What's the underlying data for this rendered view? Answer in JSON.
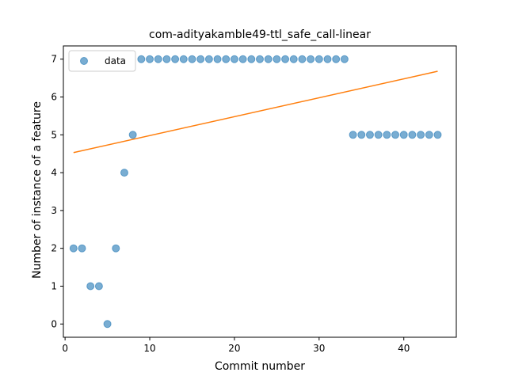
{
  "chart_data": {
    "type": "scatter",
    "title": "com-adityakamble49-ttl_safe_call-linear",
    "xlabel": "Commit number",
    "ylabel": "Number of instance of a feature",
    "xlim": [
      -0.2,
      46.2
    ],
    "ylim": [
      -0.35,
      7.35
    ],
    "xticks": [
      0,
      10,
      20,
      30,
      40
    ],
    "yticks": [
      0,
      1,
      2,
      3,
      4,
      5,
      6,
      7
    ],
    "grid": false,
    "legend_position": "top-left",
    "series": [
      {
        "name": "data",
        "type": "scatter",
        "color": "#1f77b4",
        "x": [
          1,
          2,
          3,
          4,
          5,
          6,
          7,
          8,
          9,
          10,
          11,
          12,
          13,
          14,
          15,
          16,
          17,
          18,
          19,
          20,
          21,
          22,
          23,
          24,
          25,
          26,
          27,
          28,
          29,
          30,
          31,
          32,
          33,
          34,
          35,
          36,
          37,
          38,
          39,
          40,
          41,
          42,
          43,
          44
        ],
        "y": [
          2,
          2,
          1,
          1,
          0,
          2,
          4,
          5,
          7,
          7,
          7,
          7,
          7,
          7,
          7,
          7,
          7,
          7,
          7,
          7,
          7,
          7,
          7,
          7,
          7,
          7,
          7,
          7,
          7,
          7,
          7,
          7,
          7,
          5,
          5,
          5,
          5,
          5,
          5,
          5,
          5,
          5,
          5,
          5
        ]
      },
      {
        "type": "line",
        "color": "#ff7f0e",
        "x": [
          1,
          44
        ],
        "y": [
          4.53,
          6.68
        ]
      }
    ]
  }
}
